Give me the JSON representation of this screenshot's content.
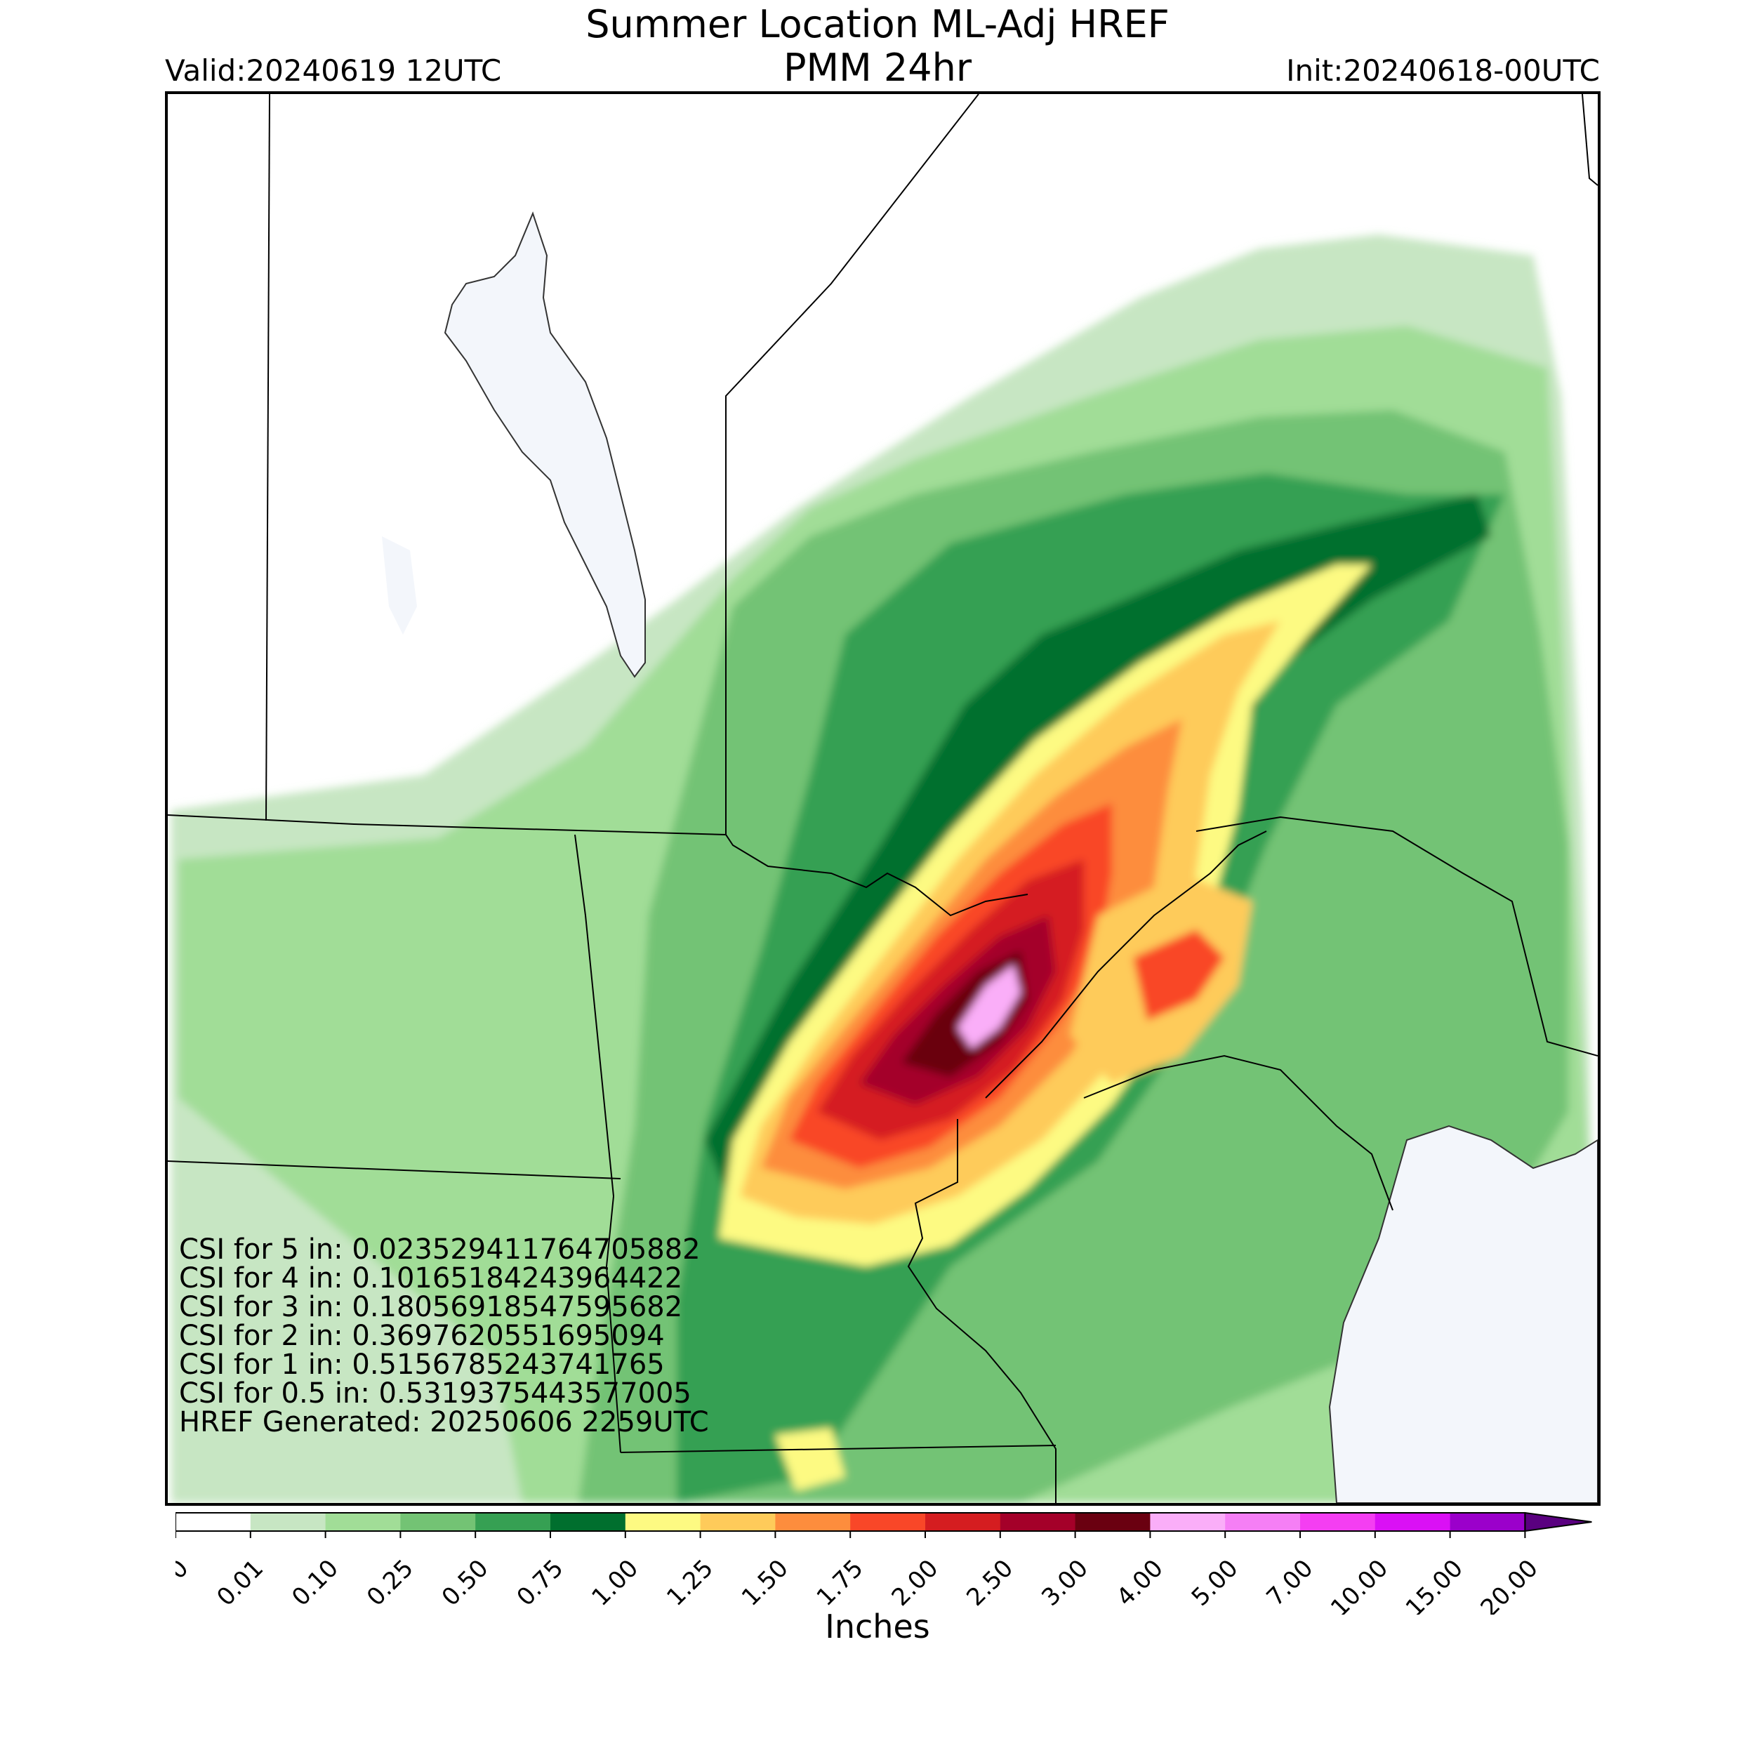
{
  "header": {
    "title_line1": "Summer Location ML-Adj HREF",
    "title_line2": "PMM 24hr",
    "valid": "Valid:20240619 12UTC",
    "init": "Init:20240618-00UTC"
  },
  "stats": {
    "lines": [
      "CSI for 5 in: 0.023529411764705882",
      "CSI for 4 in: 0.10165184243964422",
      "CSI for 3 in: 0.18056918547595682",
      "CSI for 2 in: 0.3697620551695094",
      "CSI for 1 in: 0.5156785243741765",
      "CSI for 0.5 in: 0.5319375443577005",
      "HREF Generated: 20250606 2259UTC"
    ]
  },
  "colorbar": {
    "label": "Inches",
    "ticks": [
      "0.00",
      "0.01",
      "0.10",
      "0.25",
      "0.50",
      "0.75",
      "1.00",
      "1.25",
      "1.50",
      "1.75",
      "2.00",
      "2.50",
      "3.00",
      "4.00",
      "5.00",
      "7.00",
      "10.00",
      "15.00",
      "20.00"
    ],
    "colors": [
      "#ffffff",
      "#c7e6c3",
      "#a1dd97",
      "#73c374",
      "#36a053",
      "#006f2e",
      "#fdfa82",
      "#fecb5a",
      "#fd8d3d",
      "#f94728",
      "#d51d20",
      "#a40029",
      "#6a0010",
      "#faaef8",
      "#f57ff5",
      "#f43ef2",
      "#da10f5",
      "#9b00cb"
    ],
    "extend_color": "#5a0080"
  },
  "map": {
    "water_color": "#f3f6fb",
    "boundary_color": "#000000",
    "shading": "precipitation"
  }
}
